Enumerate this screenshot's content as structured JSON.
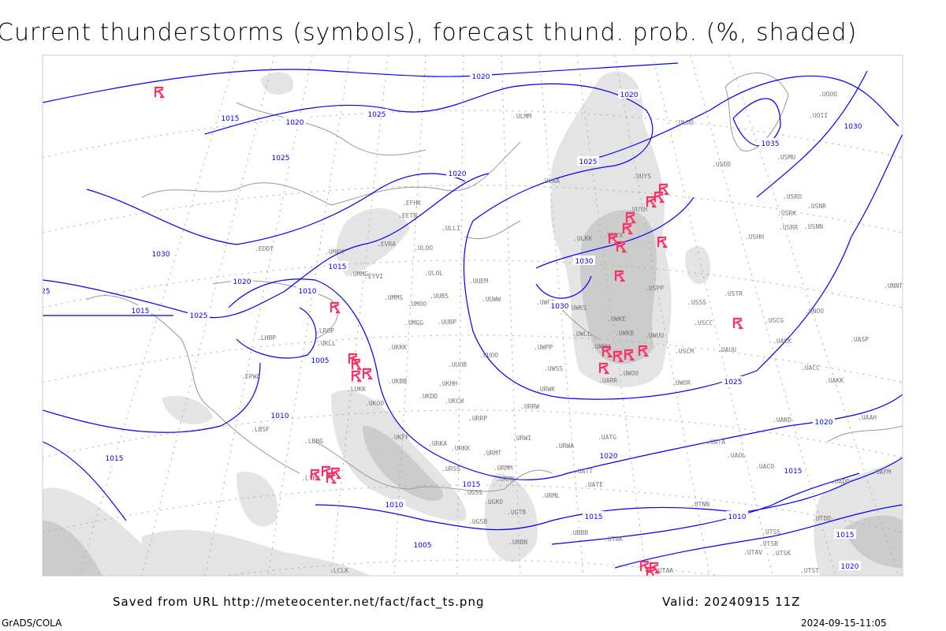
{
  "title": "Current thunderstorms (symbols), forecast thund. prob. (%, shaded)",
  "footer": {
    "saved_from": "Saved from URL http://meteocenter.net/fact/fact_ts.png",
    "valid": "Valid: 20240915 11Z",
    "software": "GrADS/COLA",
    "timestamp": "2024-09-15-11:05"
  },
  "colors": {
    "isobar": "#0000ff",
    "thunderstorm_symbol": "#ff2e63",
    "shading_light": "#e4e4e4",
    "shading_dark": "#cccccc",
    "coastline": "#999999",
    "station_label": "#777777"
  },
  "isobar_labels": [
    "1020",
    "1020",
    "1015",
    "1020",
    "1025",
    "1025",
    "1020",
    "1025",
    "1035",
    "1030",
    "1030",
    "1015",
    "1010",
    "1020",
    "1025",
    "1030",
    "1030",
    "1005",
    "1010",
    "1015",
    "1025",
    "1020",
    "1020",
    "1015",
    "1015",
    "1010",
    "1010",
    "1015",
    "1005",
    "1015",
    "1015",
    "1020",
    "25"
  ],
  "stations": [
    "ULMM",
    "ULDD",
    "USDD",
    "USMU",
    "UUYS",
    "ULAA",
    "UUYH",
    "USRO",
    "USRK",
    "USNR",
    "USRR",
    "USNN",
    "ULKK",
    "UUYX",
    "USHH",
    "EFHK",
    "EETN",
    "EVRA",
    "ULLI",
    "ULOO",
    "EDDT",
    "UMKK",
    "UMMG",
    "EYVI",
    "ULOL",
    "UUEM",
    "UUWW",
    "UWGG",
    "UWKS",
    "USPP",
    "USSS",
    "USTR",
    "UNOO",
    "UNNT",
    "UNBB",
    "UMMS",
    "UMOO",
    "UUBS",
    "UMGG",
    "UUBP",
    "UWKE",
    "USCC",
    "USCG",
    "UWKB",
    "UWUU",
    "UACK",
    "UASP",
    "UKLL",
    "UKKK",
    "UWPP",
    "UWLL",
    "UWWW",
    "USCM",
    "UAUU",
    "UUOO",
    "UUOB",
    "UWSS",
    "UWOO",
    "UACC",
    "UARR",
    "UWOR",
    "UAKK",
    "LUKK",
    "UKOO",
    "UKHH",
    "UKDD",
    "UKCW",
    "URWK",
    "URRW",
    "URRP",
    "UAKD",
    "UAAH",
    "URWI",
    "UATG",
    "UATA",
    "UKFF",
    "LBSF",
    "LBBG",
    "URKA",
    "URKK",
    "URMT",
    "URWA",
    "UAOL",
    "UACO",
    "LTBA",
    "URSS",
    "URMM",
    "URMN",
    "UATT",
    "UATE",
    "UADD",
    "UAFM",
    "UGSS",
    "UGKO",
    "UGTB",
    "URML",
    "UTNN",
    "UGSB",
    "UBBB",
    "UTAK",
    "UTSS",
    "UTSB",
    "UTDD",
    "UTAA",
    "LCLK",
    "UOOO",
    "UOII",
    "LHBP",
    "LROP",
    "EPWA",
    "UKBB",
    "UBBN",
    "UTAV",
    "UTSK",
    "UTST"
  ],
  "thunderstorm_count": 28
}
